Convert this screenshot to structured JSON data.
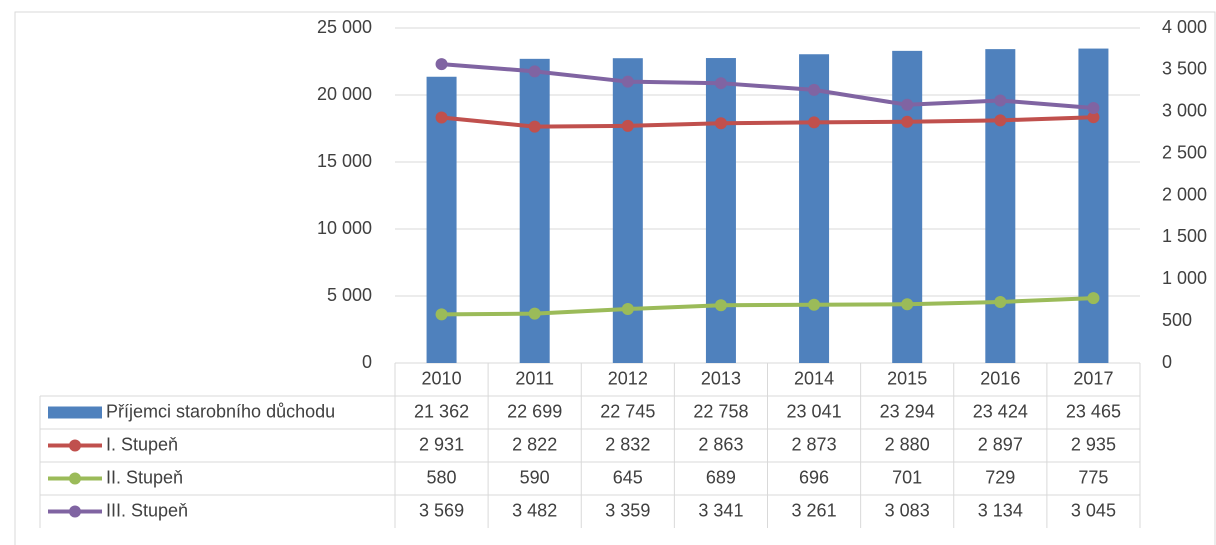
{
  "chart_data": {
    "type": "bar",
    "categories": [
      "2010",
      "2011",
      "2012",
      "2013",
      "2014",
      "2015",
      "2016",
      "2017"
    ],
    "series": [
      {
        "name": "Příjemci starobního důchodu",
        "type": "bar",
        "color": "#4f81bd",
        "values": [
          21362,
          22699,
          22745,
          22758,
          23041,
          23294,
          23424,
          23465
        ],
        "value_labels": [
          "21 362",
          "22 699",
          "22 745",
          "22 758",
          "23 041",
          "23 294",
          "23 424",
          "23 465"
        ]
      },
      {
        "name": "I. Stupeň",
        "type": "line",
        "axis": "y2",
        "color": "#c0504d",
        "values": [
          2931,
          2822,
          2832,
          2863,
          2873,
          2880,
          2897,
          2935
        ],
        "value_labels": [
          "2 931",
          "2 822",
          "2 832",
          "2 863",
          "2 873",
          "2 880",
          "2 897",
          "2 935"
        ]
      },
      {
        "name": "II. Stupeň",
        "type": "line",
        "axis": "y2",
        "color": "#9bbb59",
        "values": [
          580,
          590,
          645,
          689,
          696,
          701,
          729,
          775
        ]
      },
      {
        "name": "III. Stupeň",
        "type": "line",
        "axis": "y2",
        "color": "#8064a2",
        "values": [
          3569,
          3482,
          3359,
          3341,
          3261,
          3083,
          3134,
          3045
        ],
        "value_labels": [
          "3 569",
          "3 482",
          "3 359",
          "3 341",
          "3 261",
          "3 083",
          "3 134",
          "3 045"
        ]
      }
    ],
    "ylim": [
      0,
      25000
    ],
    "yticks": [
      0,
      {
        "value": 5000,
        "label": "5 000"
      },
      {
        "value": 10000,
        "label": "10 000"
      },
      {
        "value": 15000,
        "label": "15 000"
      },
      {
        "value": 20000,
        "label": "20 000"
      },
      {
        "value": 25000,
        "label": "25 000"
      }
    ],
    "y2lim": [
      0,
      4000
    ],
    "y2ticks": [
      0,
      500,
      {
        "value": 1000,
        "label": "1 000"
      },
      {
        "value": 1500,
        "label": "1 500"
      },
      {
        "value": 2000,
        "label": "2 000"
      },
      {
        "value": 2500,
        "label": "2 500"
      },
      {
        "value": 3000,
        "label": "3 000"
      },
      {
        "value": 3500,
        "label": "3 500"
      },
      {
        "value": 4000,
        "label": "4 000"
      }
    ],
    "grid": true
  }
}
